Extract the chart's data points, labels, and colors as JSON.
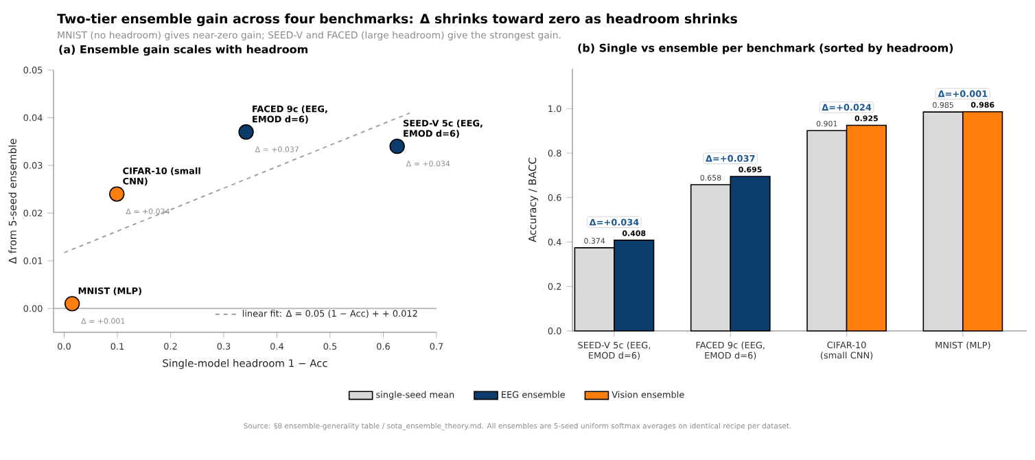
{
  "chart_data": [
    {
      "type": "other",
      "title": "Two-tier ensemble gain across four benchmarks: Δ shrinks toward zero as headroom shrinks",
      "subtitle": "MNIST (no headroom) gives near-zero gain; SEED-V and FACED (large headroom) give the strongest gain.",
      "annotations": [
        "Source: §8 ensemble-generality table / sota_ensemble_theory.md. All ensembles are 5-seed uniform softmax averages on identical recipe per dataset."
      ]
    },
    {
      "type": "scatter",
      "title": "(a) Ensemble gain scales with headroom",
      "xlabel": "Single-model headroom 1 − Acc",
      "ylabel": "Δ from 5-seed ensemble",
      "xlim": [
        -0.02,
        0.7
      ],
      "ylim": [
        -0.005,
        0.05
      ],
      "xticks": [
        {
          "value": 0,
          "label": "0.0"
        },
        0.1,
        0.2,
        0.3,
        0.4,
        0.5,
        0.6,
        0.7
      ],
      "yticks": [
        {
          "value": 0,
          "label": "0.00"
        },
        {
          "value": 0.01,
          "label": "0.01"
        },
        {
          "value": 0.02,
          "label": "0.02"
        },
        {
          "value": 0.03,
          "label": "0.03"
        },
        {
          "value": 0.04,
          "label": "0.04"
        },
        {
          "value": 0.05,
          "label": "0.05"
        }
      ],
      "legend": "bottom right",
      "series": [
        {
          "color": "#0b3c6b",
          "marker": "circle",
          "x": [
            0.626,
            0.342
          ],
          "values": [
            0.034,
            0.037
          ],
          "value_labels": [
            "Δ = +0.034",
            "Δ = +0.037"
          ]
        },
        {
          "color": "#ff7f0e",
          "marker": "circle",
          "x": [
            0.099,
            0.015
          ],
          "values": [
            0.024,
            0.001
          ],
          "value_labels": [
            "Δ = +0.024",
            "Δ = +0.001"
          ]
        },
        {
          "type": "line",
          "name": "linear fit: Δ = 0.05 (1 − Acc) + + 0.012",
          "color": "#999999",
          "line_style": "dashed",
          "marker": "none",
          "x": [
            0,
            0.65
          ],
          "values": [
            0.0117,
            0.041
          ]
        }
      ],
      "ref_lines": [
        {
          "axis": "y",
          "value": 0,
          "color": "#bbbbbb"
        }
      ],
      "annotations": [
        "SEED-V 5c (EEG, EMOD d=6)",
        "FACED 9c (EEG, EMOD d=6)",
        "CIFAR-10 (small CNN)",
        "MNIST (MLP)"
      ]
    },
    {
      "type": "bar",
      "title": "(b) Single vs ensemble per benchmark (sorted by headroom)",
      "ylabel": "Accuracy / BACC",
      "categories": [
        "SEED-V 5c (EEG, EMOD d=6)",
        "FACED 9c (EEG, EMOD d=6)",
        "CIFAR-10 (small CNN)",
        "MNIST (MLP)"
      ],
      "ylim": [
        0,
        1.18
      ],
      "yticks": [
        {
          "value": 0,
          "label": "0.0"
        },
        0.2,
        0.4,
        0.6,
        0.8,
        {
          "value": 1,
          "label": "1.0"
        }
      ],
      "series": [
        {
          "name": "single-seed mean",
          "color": "#d9d9d9",
          "values": [
            0.374,
            0.658,
            0.901,
            0.985
          ]
        },
        {
          "name": "EEG ensemble",
          "color": "#0b3c6b",
          "values": [
            0.408,
            0.695,
            null,
            null
          ]
        },
        {
          "name": "Vision ensemble",
          "color": "#ff7f0e",
          "values": [
            null,
            null,
            0.925,
            0.986
          ]
        }
      ],
      "data_labels": true,
      "legend": "bottom",
      "annotations": [
        {
          "text": "Δ=+0.034",
          "x": "SEED-V 5c (EEG, EMOD d=6)",
          "y": 0.408
        },
        {
          "text": "Δ=+0.037",
          "x": "FACED 9c (EEG, EMOD d=6)",
          "y": 0.695
        },
        {
          "text": "Δ=+0.024",
          "x": "CIFAR-10 (small CNN)",
          "y": 0.925
        },
        {
          "text": "Δ=+0.001",
          "x": "MNIST (MLP)",
          "y": 0.986
        }
      ]
    }
  ]
}
